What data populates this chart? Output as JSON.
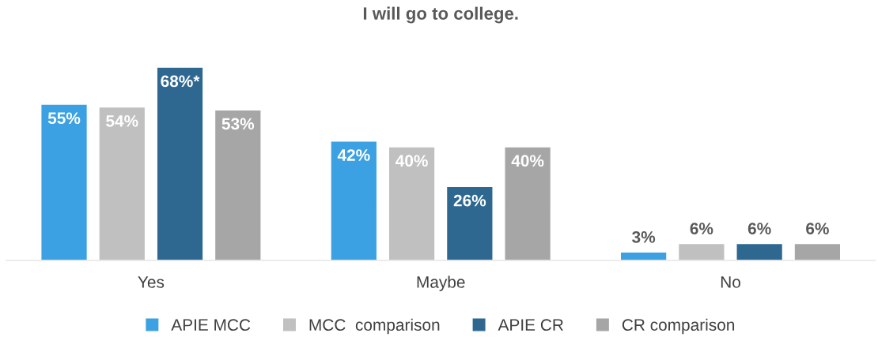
{
  "chart_data": {
    "type": "bar",
    "title": "I will go to college.",
    "categories": [
      "Yes",
      "Maybe",
      "No"
    ],
    "series": [
      {
        "name": "APIE MCC",
        "color": "#3ca1e2",
        "values": [
          55,
          42,
          3
        ],
        "value_labels": [
          "55%",
          "42%",
          "3%"
        ]
      },
      {
        "name": "MCC  comparison",
        "color": "#c0c0c0",
        "values": [
          54,
          40,
          6
        ],
        "value_labels": [
          "54%",
          "40%",
          "6%"
        ]
      },
      {
        "name": "APIE CR",
        "color": "#2e6890",
        "values": [
          68,
          26,
          6
        ],
        "value_labels": [
          "68%*",
          "26%",
          "6%"
        ]
      },
      {
        "name": "CR comparison",
        "color": "#a6a6a6",
        "values": [
          53,
          40,
          6
        ],
        "value_labels": [
          "53%",
          "40%",
          "6%"
        ]
      }
    ],
    "grid": false,
    "legend": "bottom"
  }
}
